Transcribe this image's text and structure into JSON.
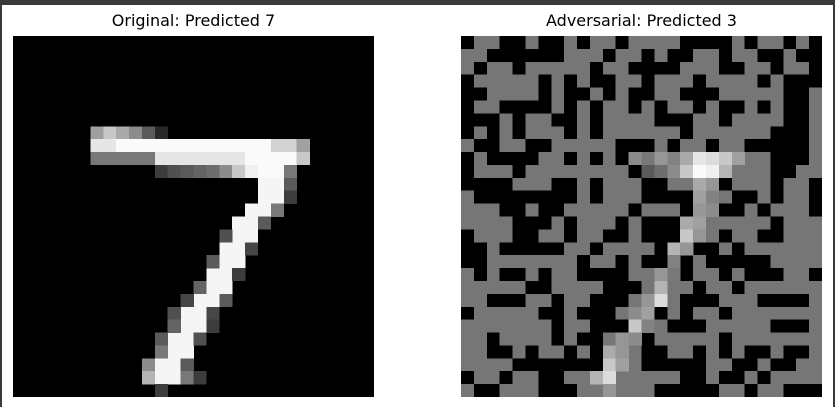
{
  "left_panel": {
    "title": "Original: Predicted 7"
  },
  "right_panel": {
    "title": "Adversarial: Predicted 3"
  }
}
